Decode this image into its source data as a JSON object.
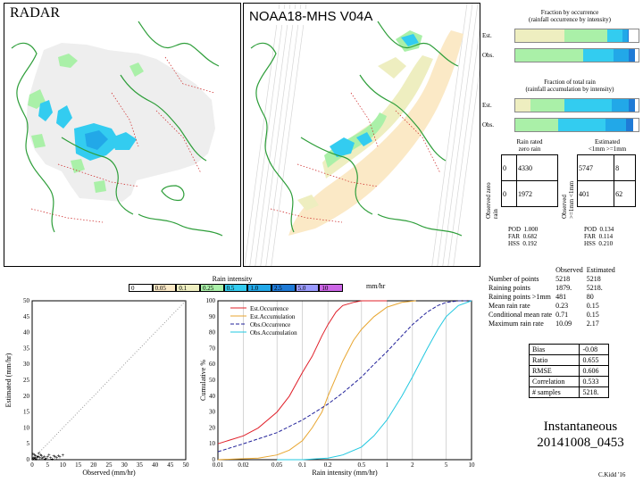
{
  "maps": {
    "radar_title": "RADAR",
    "sat_title": "NOAA18-MHS V04A"
  },
  "fraction_occurrence": {
    "title1": "Fraction by occurrence",
    "title2": "(rainfall occurrence by intensity)",
    "rows": [
      {
        "label": "Est.",
        "shares": [
          0.0,
          0.4,
          0.35,
          0.12,
          0.04,
          0.01
        ]
      },
      {
        "label": "Obs.",
        "shares": [
          0.0,
          0.0,
          0.55,
          0.25,
          0.12,
          0.05
        ]
      }
    ]
  },
  "fraction_rain": {
    "title1": "Fraction of total rain",
    "title2": "(rainfall accumulation by intensity)",
    "rows": [
      {
        "label": "Est.",
        "shares": [
          0.0,
          0.12,
          0.28,
          0.38,
          0.14,
          0.05
        ]
      },
      {
        "label": "Obs.",
        "shares": [
          0.0,
          0.0,
          0.35,
          0.38,
          0.17,
          0.06
        ]
      }
    ]
  },
  "colors": {
    "c1": "#fbe9c6",
    "c2": "#eeeec0",
    "c3": "#aaf0a8",
    "c4": "#33ccf0",
    "c5": "#22a8e8",
    "c6": "#1f7ad6",
    "c7": "#9a9aff",
    "c8": "#cc66e6",
    "green": "#2e9e3a",
    "red": "#e0202a",
    "orange": "#e8a630",
    "navy": "#22229a",
    "cyan": "#22c8e0"
  },
  "contingency_left": {
    "col_title1": "Rain rated",
    "col_title2": "zero    rain",
    "row_title": "Observed zero   rain",
    "cells": [
      "0",
      "4330",
      "0",
      "1972"
    ],
    "pod_label": "POD",
    "pod": "1.000",
    "far_label": "FAR",
    "far": "0.682",
    "hss_label": "HSS",
    "hss": "0.192"
  },
  "contingency_right": {
    "col_title1": "Estimated",
    "col_title2": "<1mm   >=1mm",
    "row_title": "Observed >=1mm <1mm",
    "cells": [
      "5747",
      "8",
      "401",
      "62"
    ],
    "pod_label": "POD",
    "pod": "0.134",
    "far_label": "FAR",
    "far": "0.114",
    "hss_label": "HSS",
    "hss": "0.210"
  },
  "legend_bar": {
    "title": "Rain intensity",
    "unit": "mm/hr",
    "ticks": [
      "0",
      "0.05",
      "0.1",
      "0.25",
      "0.5",
      "1.0",
      "2.5",
      "5.0",
      "10"
    ]
  },
  "stats_table": {
    "head_obs": "Observed",
    "head_est": "Estimated",
    "rows": [
      {
        "label": "Number of points",
        "obs": "5218",
        "est": "5218"
      },
      {
        "label": "Raining points",
        "obs": "1879.",
        "est": "5218."
      },
      {
        "label": "Raining points >1mm",
        "obs": "481",
        "est": "80"
      },
      {
        "label": "Mean rain rate",
        "obs": "0.23",
        "est": "0.15"
      },
      {
        "label": "Conditional mean rate",
        "obs": "0.71",
        "est": "0.15"
      },
      {
        "label": "Maximum rain rate",
        "obs": "10.09",
        "est": "2.17"
      }
    ]
  },
  "summary": {
    "rows": [
      {
        "label": "Bias",
        "value": "-0.08"
      },
      {
        "label": "Ratio",
        "value": "0.655"
      },
      {
        "label": "RMSE",
        "value": "0.606"
      },
      {
        "label": "Correlation",
        "value": "0.533"
      },
      {
        "label": "# samples",
        "value": "5218."
      }
    ]
  },
  "caption": {
    "line1": "Instantaneous",
    "line2": "20141008_0453",
    "credit": "C.Kidd '16"
  },
  "chart_data": [
    {
      "type": "scatter",
      "title": "",
      "xlabel": "Observed (mm/hr)",
      "ylabel": "Estimated (mm/hr)",
      "xlim": [
        0,
        50
      ],
      "ylim": [
        0,
        50
      ],
      "xticks": [
        "0",
        "5",
        "10",
        "15",
        "20",
        "25",
        "30",
        "35",
        "40",
        "45",
        "50"
      ],
      "yticks": [
        "0",
        "5",
        "10",
        "15",
        "20",
        "25",
        "30",
        "35",
        "40",
        "45",
        "50"
      ],
      "points": [
        [
          0.2,
          0.1
        ],
        [
          0.5,
          0.3
        ],
        [
          1,
          0.4
        ],
        [
          1.5,
          0.6
        ],
        [
          2,
          0.9
        ],
        [
          2.5,
          0.5
        ],
        [
          3,
          1.2
        ],
        [
          0.8,
          1.5
        ],
        [
          1.2,
          0.2
        ],
        [
          3.5,
          0.7
        ],
        [
          4,
          1.0
        ],
        [
          4.5,
          0.4
        ],
        [
          5,
          0.8
        ],
        [
          6,
          0.6
        ],
        [
          7,
          1.1
        ],
        [
          8,
          0.5
        ],
        [
          9,
          0.9
        ],
        [
          10,
          1.4
        ],
        [
          0.3,
          1.8
        ],
        [
          2.2,
          2.0
        ],
        [
          1.8,
          1.0
        ],
        [
          0.6,
          0.7
        ],
        [
          3.2,
          0.3
        ],
        [
          5.5,
          1.5
        ],
        [
          6.5,
          0.2
        ],
        [
          7.5,
          0.8
        ],
        [
          8.5,
          1.2
        ],
        [
          2.8,
          1.6
        ],
        [
          4.2,
          0.2
        ],
        [
          1.1,
          1.1
        ]
      ]
    },
    {
      "type": "line",
      "title": "",
      "xlabel": "Rain intensity (mm/hr)",
      "ylabel": "Cumulative %",
      "xscale": "log",
      "xlim": [
        0.01,
        10
      ],
      "ylim": [
        0,
        100
      ],
      "xticks": [
        "0.01",
        "0.02",
        "0.05",
        "0.1",
        "0.2",
        "0.5",
        "1",
        "2",
        "5",
        "10"
      ],
      "yticks": [
        "0",
        "10",
        "20",
        "30",
        "40",
        "50",
        "60",
        "70",
        "80",
        "90",
        "100"
      ],
      "series": [
        {
          "name": "Est.Occurrence",
          "color": "#e0202a",
          "dash": "none",
          "x": [
            0.01,
            0.02,
            0.03,
            0.05,
            0.07,
            0.1,
            0.13,
            0.17,
            0.2,
            0.25,
            0.3,
            0.4,
            0.5,
            0.7,
            1.0
          ],
          "y": [
            10,
            15,
            20,
            30,
            40,
            55,
            65,
            78,
            85,
            93,
            97,
            99,
            100,
            100,
            100
          ]
        },
        {
          "name": "Est.Accumulation",
          "color": "#e8a630",
          "dash": "none",
          "x": [
            0.01,
            0.03,
            0.05,
            0.07,
            0.1,
            0.13,
            0.17,
            0.2,
            0.25,
            0.3,
            0.4,
            0.5,
            0.7,
            1.0,
            1.5,
            2.2
          ],
          "y": [
            0,
            1,
            3,
            6,
            12,
            20,
            30,
            40,
            52,
            62,
            75,
            82,
            90,
            96,
            99,
            100
          ]
        },
        {
          "name": "Obs.Occurrence",
          "color": "#22229a",
          "dash": "4,2",
          "x": [
            0.01,
            0.02,
            0.05,
            0.1,
            0.2,
            0.3,
            0.5,
            0.7,
            1,
            1.5,
            2,
            3,
            4,
            5,
            7,
            10
          ],
          "y": [
            5,
            10,
            17,
            25,
            35,
            42,
            52,
            60,
            68,
            78,
            85,
            93,
            97,
            99,
            100,
            100
          ]
        },
        {
          "name": "Obs.Accumulation",
          "color": "#22c8e0",
          "dash": "none",
          "x": [
            0.05,
            0.1,
            0.2,
            0.3,
            0.5,
            0.7,
            1,
            1.5,
            2,
            3,
            4,
            5,
            7,
            10
          ],
          "y": [
            0,
            0,
            1,
            3,
            8,
            15,
            25,
            40,
            52,
            70,
            82,
            90,
            97,
            100
          ]
        }
      ]
    }
  ]
}
